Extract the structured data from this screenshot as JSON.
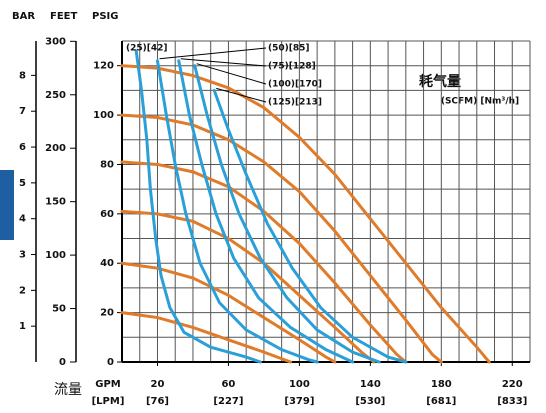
{
  "chart_data": {
    "type": "line",
    "x_label": "GPM",
    "x2_label": "[LPM]",
    "x_side_label": "流量",
    "y_label": "PSIG",
    "y_feet_label": "FEET",
    "y_bar_label": "BAR",
    "legend_title": "耗气量",
    "legend_subtitle": "(SCFM) [Nm³/h]",
    "xlim": [
      0,
      230
    ],
    "ylim": [
      0,
      130
    ],
    "xticks": [
      20,
      60,
      100,
      140,
      180,
      220
    ],
    "x2ticks": [
      {
        "value": 20,
        "label": "[76]"
      },
      {
        "value": 60,
        "label": "[227]"
      },
      {
        "value": 100,
        "label": "[379]"
      },
      {
        "value": 140,
        "label": "[530]"
      },
      {
        "value": 180,
        "label": "[681]"
      },
      {
        "value": 220,
        "label": "[833]"
      }
    ],
    "yticks": [
      0,
      20,
      40,
      60,
      80,
      100,
      120
    ],
    "feet_lim": [
      0,
      300.3
    ],
    "feet_ticks": [
      0,
      50,
      100,
      150,
      200,
      250,
      300
    ],
    "bar_lim": [
      0,
      8.96
    ],
    "bar_ticks": [
      1,
      2,
      3,
      4,
      5,
      6,
      7,
      8
    ],
    "x_grid": [
      0,
      10,
      20,
      30,
      40,
      50,
      60,
      70,
      80,
      90,
      100,
      110,
      120,
      130,
      140,
      150,
      160,
      170,
      180,
      190,
      200,
      210,
      220,
      230
    ],
    "y_grid": [
      10,
      20,
      30,
      40,
      50,
      60,
      70,
      80,
      90,
      100,
      110,
      120,
      130
    ],
    "series": [
      {
        "color": "#e07b2a",
        "x": [
          0,
          20,
          40,
          60,
          80,
          100,
          120,
          140,
          160,
          180,
          200,
          207
        ],
        "values": [
          120,
          119,
          116,
          111,
          103,
          91,
          76,
          58,
          40,
          22,
          6,
          0
        ]
      },
      {
        "color": "#e07b2a",
        "x": [
          0,
          20,
          40,
          60,
          80,
          100,
          120,
          140,
          160,
          175,
          180
        ],
        "values": [
          100,
          99,
          96,
          90,
          81,
          69,
          53,
          35,
          17,
          3,
          0
        ]
      },
      {
        "color": "#e07b2a",
        "x": [
          0,
          20,
          40,
          60,
          80,
          100,
          120,
          140,
          155,
          160
        ],
        "values": [
          81,
          80,
          77,
          71,
          61,
          48,
          32,
          15,
          3,
          0
        ]
      },
      {
        "color": "#e07b2a",
        "x": [
          0,
          20,
          40,
          60,
          80,
          100,
          120,
          135,
          142
        ],
        "values": [
          61,
          60,
          57,
          50,
          40,
          27,
          14,
          4,
          0
        ]
      },
      {
        "color": "#e07b2a",
        "x": [
          0,
          20,
          40,
          60,
          80,
          100,
          115,
          120
        ],
        "values": [
          40,
          38,
          34,
          27,
          18,
          9,
          2,
          0
        ]
      },
      {
        "color": "#e07b2a",
        "x": [
          0,
          20,
          40,
          60,
          80,
          95
        ],
        "values": [
          20,
          18,
          14,
          9,
          4,
          0
        ]
      },
      {
        "name": "(25)[42]",
        "color": "#2b9fd8",
        "x": [
          8,
          11,
          14,
          16,
          19,
          22,
          27,
          35,
          50,
          70,
          78
        ],
        "values": [
          126,
          110,
          90,
          70,
          50,
          35,
          22,
          12,
          6,
          2,
          0
        ]
      },
      {
        "name": "(50)[85]",
        "color": "#2b9fd8",
        "x": [
          20,
          25,
          30,
          36,
          44,
          55,
          70,
          90,
          105,
          110
        ],
        "values": [
          122,
          100,
          80,
          60,
          40,
          24,
          13,
          5,
          1,
          0
        ]
      },
      {
        "name": "(75)[128]",
        "color": "#2b9fd8",
        "x": [
          32,
          38,
          45,
          53,
          63,
          77,
          95,
          115,
          130
        ],
        "values": [
          122,
          100,
          80,
          60,
          42,
          26,
          14,
          5,
          0
        ]
      },
      {
        "name": "(100)[170]",
        "color": "#2b9fd8",
        "x": [
          41,
          48,
          56,
          66,
          78,
          93,
          110,
          130,
          145
        ],
        "values": [
          120,
          100,
          80,
          60,
          42,
          26,
          13,
          4,
          0
        ]
      },
      {
        "name": "(125)[213]",
        "color": "#2b9fd8",
        "x": [
          52,
          60,
          70,
          82,
          96,
          112,
          130,
          150,
          160
        ],
        "values": [
          110,
          94,
          76,
          56,
          38,
          22,
          10,
          2,
          0
        ]
      }
    ]
  }
}
